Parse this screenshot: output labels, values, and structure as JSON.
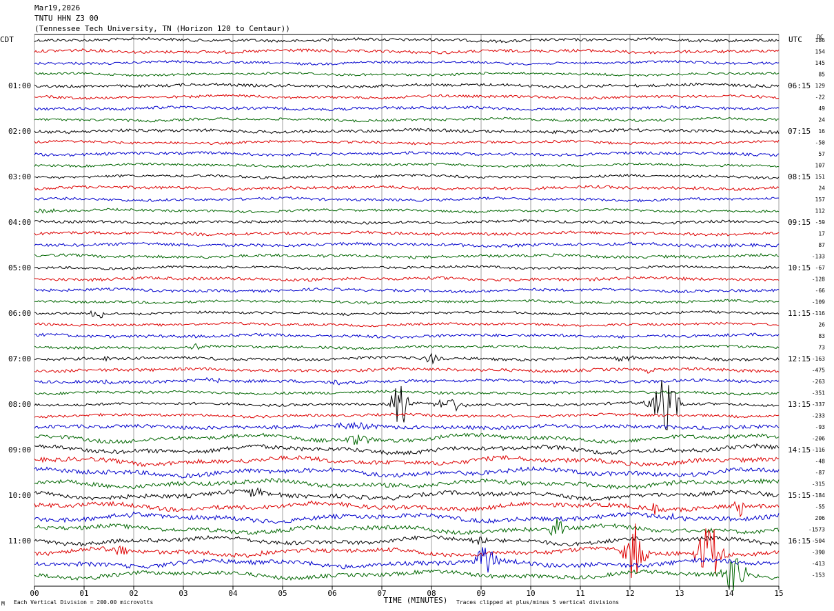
{
  "header": {
    "date": "Mar19,2026",
    "station": "TNTU HHN Z3 00",
    "location": "(Tennessee Tech University, TN (Horizon 120 to Centaur))"
  },
  "chart_data": {
    "type": "line",
    "left_timezone": "CDT",
    "right_timezone": "UTC",
    "dc_header": "DC",
    "xlabel": "TIME (MINUTES)",
    "x_ticks": [
      "00",
      "01",
      "02",
      "03",
      "04",
      "05",
      "06",
      "07",
      "08",
      "09",
      "10",
      "11",
      "12",
      "13",
      "14",
      "15"
    ],
    "xlim": [
      0,
      15
    ],
    "left_time_labels": [
      "01:00",
      "02:00",
      "03:00",
      "04:00",
      "05:00",
      "06:00",
      "07:00",
      "08:00",
      "09:00",
      "10:00",
      "11:00"
    ],
    "right_time_labels": [
      "06:15",
      "07:15",
      "08:15",
      "09:15",
      "10:15",
      "11:15",
      "12:15",
      "13:15",
      "14:15",
      "15:15",
      "16:15"
    ],
    "trace_colors": [
      "#000000",
      "#dd0000",
      "#0000cc",
      "#006600"
    ],
    "dc_offsets": [
      "186",
      "154",
      "145",
      "85",
      "129",
      "-22",
      "49",
      "24",
      "16",
      "-50",
      "57",
      "107",
      "151",
      "24",
      "157",
      "112",
      "-59",
      "17",
      "87",
      "-133",
      "-67",
      "-128",
      "-66",
      "-109",
      "-116",
      "26",
      "83",
      "73",
      "-163",
      "-475",
      "-263",
      "-351",
      "-337",
      "-233",
      "-93",
      "-206",
      "-116",
      "-48",
      "-87",
      "-315",
      "-184",
      "-55",
      "206",
      "-1573",
      "-504",
      "-390",
      "-413",
      "-153"
    ],
    "footer_left": "Each Vertical Division =  200.00 microvolts",
    "footer_right": "Traces clipped at plus/minus 5 vertical divisions",
    "corner_mark": "M"
  }
}
